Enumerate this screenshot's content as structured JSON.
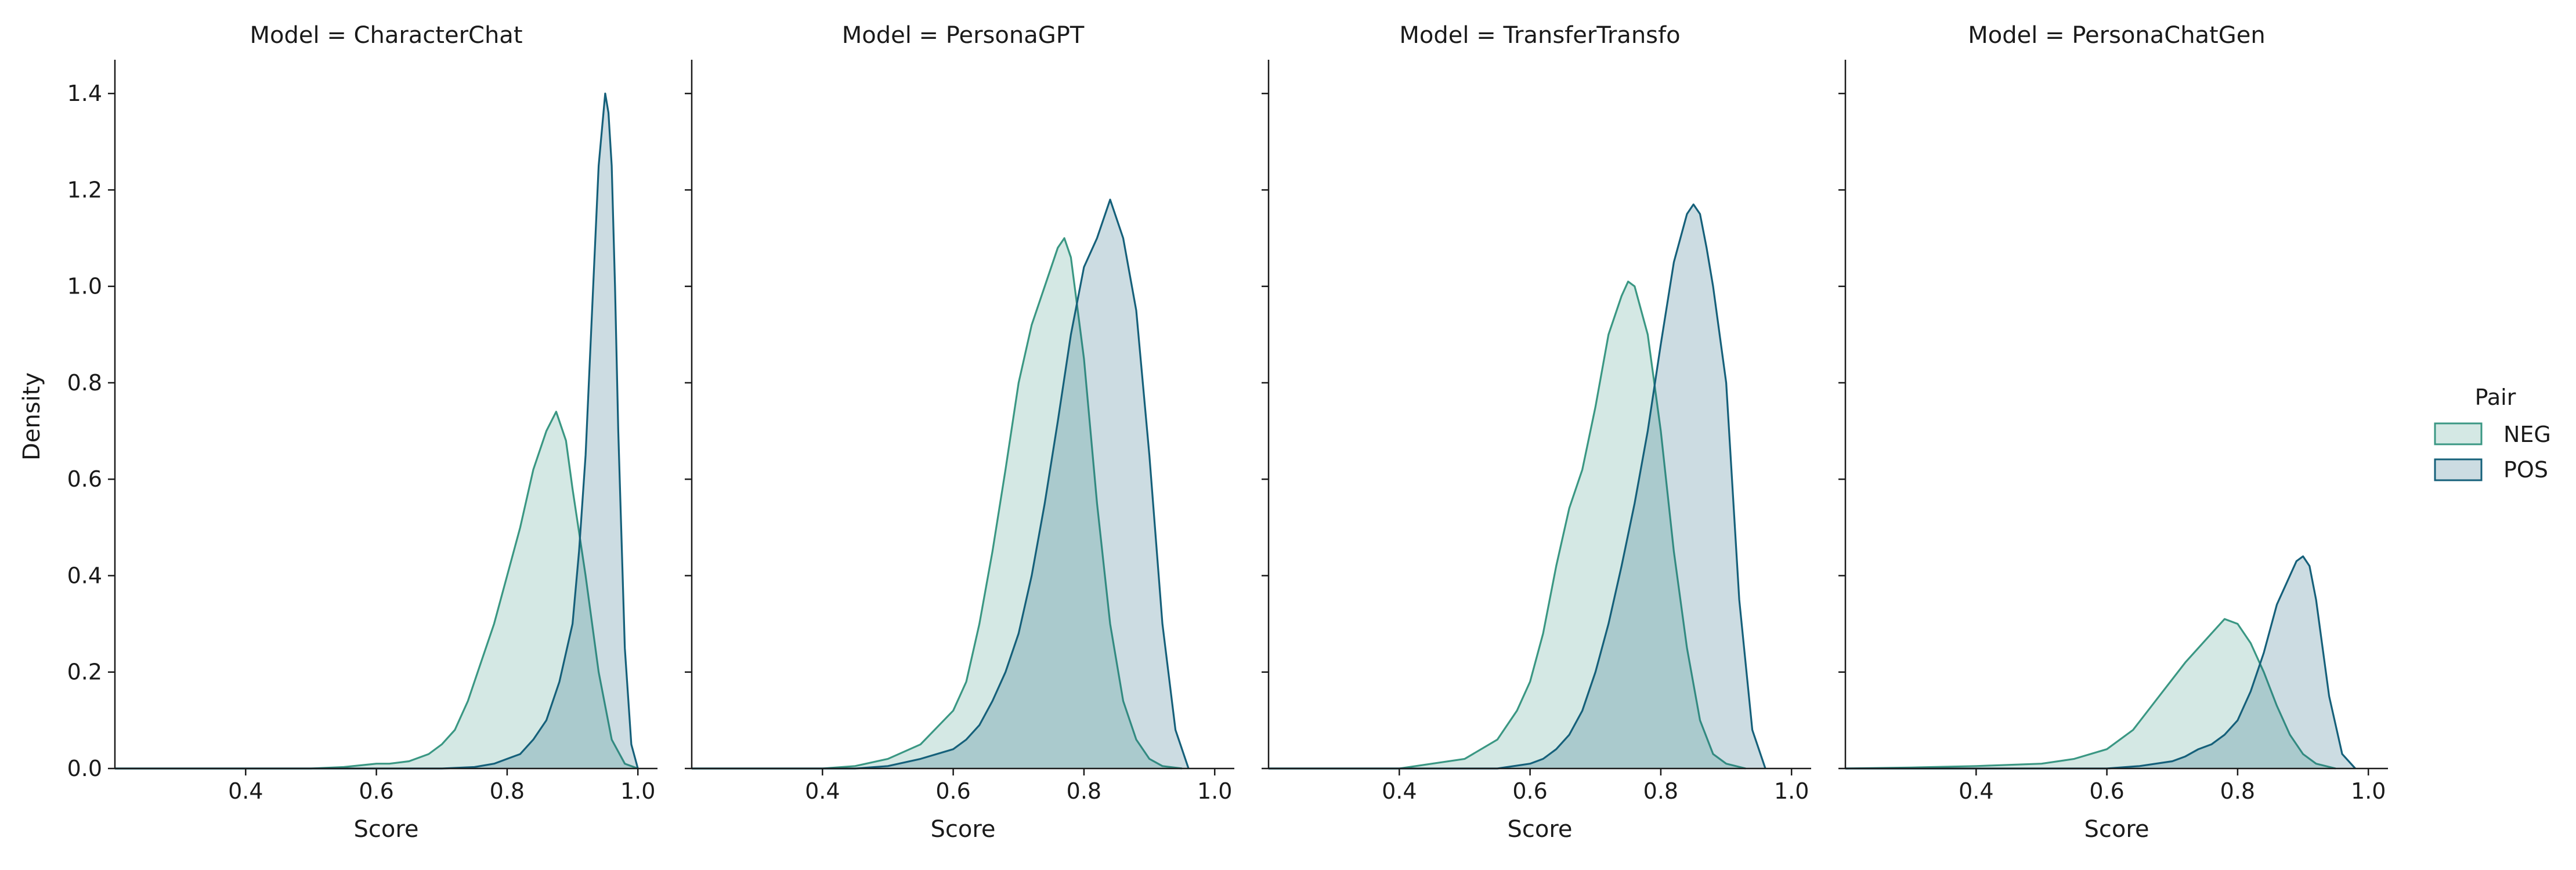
{
  "chart_data": {
    "type": "area",
    "xlabel": "Score",
    "ylabel": "Density",
    "xlim": [
      0.2,
      1.03
    ],
    "ylim": [
      0,
      1.47
    ],
    "xticks": [
      0.4,
      0.6,
      0.8,
      1.0
    ],
    "xtick_labels": [
      "0.4",
      "0.6",
      "0.8",
      "1.0"
    ],
    "yticks": [
      0.0,
      0.2,
      0.4,
      0.6,
      0.8,
      1.0,
      1.2,
      1.4
    ],
    "ytick_labels": [
      "0.0",
      "0.2",
      "0.4",
      "0.6",
      "0.8",
      "1.0",
      "1.2",
      "1.4"
    ],
    "legend": {
      "title": "Pair",
      "placement": "right",
      "entries": [
        {
          "label": "NEG",
          "color": "#3a9783"
        },
        {
          "label": "POS",
          "color": "#15607a"
        }
      ]
    },
    "panels": [
      {
        "title": "Model = CharacterChat",
        "series": [
          {
            "name": "NEG",
            "color": "#3a9783",
            "x": [
              0.2,
              0.5,
              0.55,
              0.6,
              0.62,
              0.65,
              0.68,
              0.7,
              0.72,
              0.74,
              0.76,
              0.78,
              0.8,
              0.82,
              0.84,
              0.86,
              0.875,
              0.89,
              0.9,
              0.92,
              0.94,
              0.96,
              0.98,
              1.0
            ],
            "y": [
              0,
              0,
              0.003,
              0.01,
              0.01,
              0.015,
              0.03,
              0.05,
              0.08,
              0.14,
              0.22,
              0.3,
              0.4,
              0.5,
              0.62,
              0.7,
              0.74,
              0.68,
              0.58,
              0.4,
              0.2,
              0.06,
              0.01,
              0
            ]
          },
          {
            "name": "POS",
            "color": "#15607a",
            "x": [
              0.2,
              0.7,
              0.75,
              0.78,
              0.8,
              0.82,
              0.84,
              0.86,
              0.88,
              0.9,
              0.91,
              0.92,
              0.93,
              0.94,
              0.95,
              0.955,
              0.96,
              0.965,
              0.97,
              0.98,
              0.99,
              1.0
            ],
            "y": [
              0,
              0,
              0.003,
              0.01,
              0.02,
              0.03,
              0.06,
              0.1,
              0.18,
              0.3,
              0.45,
              0.65,
              0.95,
              1.25,
              1.4,
              1.36,
              1.25,
              1.0,
              0.7,
              0.25,
              0.05,
              0
            ]
          }
        ]
      },
      {
        "title": "Model = PersonaGPT",
        "series": [
          {
            "name": "NEG",
            "color": "#3a9783",
            "x": [
              0.2,
              0.4,
              0.45,
              0.5,
              0.55,
              0.6,
              0.62,
              0.64,
              0.66,
              0.68,
              0.7,
              0.72,
              0.74,
              0.76,
              0.77,
              0.78,
              0.8,
              0.82,
              0.84,
              0.86,
              0.88,
              0.9,
              0.92,
              0.95
            ],
            "y": [
              0,
              0,
              0.005,
              0.02,
              0.05,
              0.12,
              0.18,
              0.3,
              0.45,
              0.62,
              0.8,
              0.92,
              1.0,
              1.08,
              1.1,
              1.06,
              0.85,
              0.55,
              0.3,
              0.14,
              0.06,
              0.02,
              0.005,
              0
            ]
          },
          {
            "name": "POS",
            "color": "#15607a",
            "x": [
              0.2,
              0.45,
              0.5,
              0.55,
              0.6,
              0.62,
              0.64,
              0.66,
              0.68,
              0.7,
              0.72,
              0.74,
              0.76,
              0.78,
              0.8,
              0.82,
              0.84,
              0.86,
              0.88,
              0.9,
              0.92,
              0.94,
              0.96
            ],
            "y": [
              0,
              0,
              0.005,
              0.02,
              0.04,
              0.06,
              0.09,
              0.14,
              0.2,
              0.28,
              0.4,
              0.55,
              0.72,
              0.9,
              1.04,
              1.1,
              1.18,
              1.1,
              0.95,
              0.65,
              0.3,
              0.08,
              0
            ]
          }
        ]
      },
      {
        "title": "Model = TransferTransfo",
        "series": [
          {
            "name": "NEG",
            "color": "#3a9783",
            "x": [
              0.2,
              0.4,
              0.45,
              0.5,
              0.55,
              0.58,
              0.6,
              0.62,
              0.64,
              0.66,
              0.68,
              0.7,
              0.72,
              0.74,
              0.75,
              0.76,
              0.78,
              0.8,
              0.82,
              0.84,
              0.86,
              0.88,
              0.9,
              0.93
            ],
            "y": [
              0,
              0,
              0.01,
              0.02,
              0.06,
              0.12,
              0.18,
              0.28,
              0.42,
              0.54,
              0.62,
              0.75,
              0.9,
              0.98,
              1.01,
              1.0,
              0.9,
              0.7,
              0.45,
              0.25,
              0.1,
              0.03,
              0.01,
              0
            ]
          },
          {
            "name": "POS",
            "color": "#15607a",
            "x": [
              0.2,
              0.55,
              0.6,
              0.62,
              0.64,
              0.66,
              0.68,
              0.7,
              0.72,
              0.74,
              0.76,
              0.78,
              0.8,
              0.82,
              0.84,
              0.85,
              0.86,
              0.87,
              0.88,
              0.9,
              0.92,
              0.94,
              0.96
            ],
            "y": [
              0,
              0,
              0.01,
              0.02,
              0.04,
              0.07,
              0.12,
              0.2,
              0.3,
              0.42,
              0.55,
              0.7,
              0.88,
              1.05,
              1.15,
              1.17,
              1.15,
              1.08,
              1.0,
              0.8,
              0.35,
              0.08,
              0
            ]
          }
        ]
      },
      {
        "title": "Model = PersonaChatGen",
        "series": [
          {
            "name": "NEG",
            "color": "#3a9783",
            "x": [
              0.2,
              0.3,
              0.4,
              0.5,
              0.55,
              0.6,
              0.64,
              0.68,
              0.72,
              0.76,
              0.78,
              0.8,
              0.82,
              0.84,
              0.86,
              0.88,
              0.9,
              0.92,
              0.95
            ],
            "y": [
              0,
              0.002,
              0.005,
              0.01,
              0.02,
              0.04,
              0.08,
              0.15,
              0.22,
              0.28,
              0.31,
              0.3,
              0.26,
              0.2,
              0.13,
              0.07,
              0.03,
              0.01,
              0
            ]
          },
          {
            "name": "POS",
            "color": "#15607a",
            "x": [
              0.2,
              0.6,
              0.65,
              0.7,
              0.72,
              0.74,
              0.76,
              0.78,
              0.8,
              0.82,
              0.84,
              0.86,
              0.88,
              0.89,
              0.9,
              0.91,
              0.92,
              0.94,
              0.96,
              0.98
            ],
            "y": [
              0,
              0,
              0.005,
              0.015,
              0.025,
              0.04,
              0.05,
              0.07,
              0.1,
              0.16,
              0.24,
              0.34,
              0.4,
              0.43,
              0.44,
              0.42,
              0.35,
              0.15,
              0.03,
              0
            ]
          }
        ]
      }
    ]
  }
}
